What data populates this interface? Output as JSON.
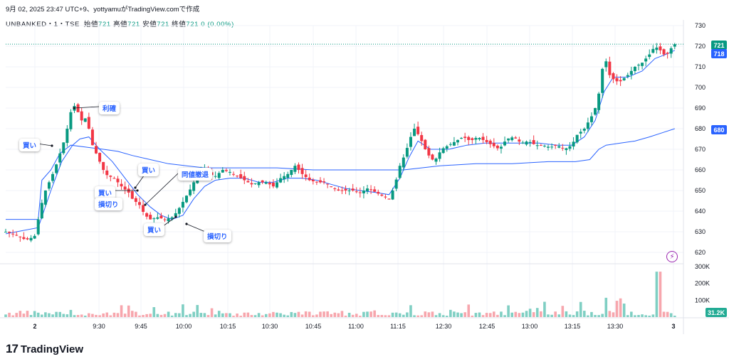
{
  "header": {
    "date_line": "9月 02, 2025 23:47 UTC+9、yottyamuがTradingView.comで作成",
    "symbol": "UNBANKED・1・TSE",
    "open_label": "始値",
    "open": "721",
    "high_label": "高値",
    "high": "721",
    "low_label": "安値",
    "low": "721",
    "close_label": "終値",
    "close": "721",
    "change": "0 (0.00%)"
  },
  "price_tags": {
    "last": "721",
    "line": "718",
    "vwap": "680",
    "volume": "31.2K"
  },
  "annotations": {
    "profit": "利確",
    "buy1": "買い",
    "buy2": "買い",
    "buy3": "買い",
    "buy4": "買い",
    "stop1": "損切り",
    "stop2": "損切り",
    "retreat": "同値撤退"
  },
  "footer": {
    "brand": "TradingView"
  },
  "colors": {
    "up": "#089981",
    "down": "#f23645",
    "vol_up": "#7fcfc3",
    "vol_down": "#f7a6ad",
    "line": "#2962ff",
    "accent": "#2962ff"
  },
  "chart_data": {
    "type": "candlestick",
    "price_axis": {
      "min": 620,
      "max": 730,
      "ticks": [
        620,
        630,
        640,
        650,
        660,
        670,
        680,
        690,
        700,
        710,
        720,
        730
      ]
    },
    "volume_axis": {
      "max": 300000,
      "ticks": [
        "100K",
        "200K",
        "300K"
      ],
      "tick_values": [
        100000,
        200000,
        300000
      ]
    },
    "time_axis": [
      "2",
      "9:30",
      "9:45",
      "10:00",
      "10:15",
      "10:30",
      "10:45",
      "11:00",
      "11:15",
      "12:30",
      "12:45",
      "13:00",
      "13:15",
      "13:30",
      "3"
    ],
    "series": [
      {
        "name": "price",
        "points": [
          [
            0,
            630
          ],
          [
            8,
            629
          ],
          [
            14,
            628
          ],
          [
            18,
            627
          ],
          [
            22,
            626
          ],
          [
            28,
            627
          ],
          [
            32,
            628
          ],
          [
            36,
            636
          ],
          [
            42,
            648
          ],
          [
            48,
            654
          ],
          [
            54,
            660
          ],
          [
            60,
            668
          ],
          [
            66,
            676
          ],
          [
            70,
            684
          ],
          [
            74,
            692
          ],
          [
            78,
            690
          ],
          [
            84,
            684
          ],
          [
            88,
            685
          ],
          [
            92,
            680
          ],
          [
            96,
            672
          ],
          [
            104,
            664
          ],
          [
            110,
            658
          ],
          [
            114,
            657
          ],
          [
            120,
            656
          ],
          [
            128,
            652
          ],
          [
            136,
            649
          ],
          [
            140,
            646
          ],
          [
            148,
            643
          ],
          [
            154,
            638
          ],
          [
            160,
            636
          ],
          [
            168,
            637
          ],
          [
            176,
            636
          ],
          [
            184,
            637
          ],
          [
            190,
            640
          ],
          [
            198,
            646
          ],
          [
            206,
            652
          ],
          [
            212,
            658
          ],
          [
            218,
            662
          ],
          [
            224,
            658
          ],
          [
            232,
            657
          ],
          [
            240,
            660
          ],
          [
            248,
            659
          ],
          [
            256,
            657
          ],
          [
            264,
            655
          ],
          [
            272,
            653
          ],
          [
            280,
            654
          ],
          [
            288,
            654
          ],
          [
            296,
            652
          ],
          [
            304,
            656
          ],
          [
            312,
            658
          ],
          [
            320,
            662
          ],
          [
            328,
            658
          ],
          [
            336,
            655
          ],
          [
            344,
            654
          ],
          [
            352,
            654
          ],
          [
            360,
            652
          ],
          [
            368,
            650
          ],
          [
            376,
            650
          ],
          [
            384,
            650
          ],
          [
            392,
            649
          ],
          [
            400,
            651
          ],
          [
            410,
            649
          ],
          [
            418,
            647
          ],
          [
            424,
            646
          ],
          [
            430,
            652
          ],
          [
            436,
            662
          ],
          [
            442,
            668
          ],
          [
            448,
            676
          ],
          [
            452,
            680
          ],
          [
            458,
            676
          ],
          [
            466,
            668
          ],
          [
            474,
            664
          ],
          [
            482,
            670
          ],
          [
            490,
            672
          ],
          [
            498,
            674
          ],
          [
            506,
            676
          ],
          [
            514,
            674
          ],
          [
            522,
            676
          ],
          [
            530,
            674
          ],
          [
            538,
            672
          ],
          [
            546,
            670
          ],
          [
            554,
            675
          ],
          [
            562,
            676
          ],
          [
            570,
            673
          ],
          [
            578,
            674
          ],
          [
            586,
            672
          ],
          [
            594,
            672
          ],
          [
            602,
            671
          ],
          [
            610,
            672
          ],
          [
            618,
            670
          ],
          [
            626,
            672
          ],
          [
            632,
            677
          ],
          [
            640,
            680
          ],
          [
            648,
            686
          ],
          [
            654,
            692
          ],
          [
            658,
            702
          ],
          [
            662,
            716
          ],
          [
            668,
            706
          ],
          [
            674,
            703
          ],
          [
            680,
            703
          ],
          [
            688,
            706
          ],
          [
            696,
            710
          ],
          [
            704,
            712
          ],
          [
            712,
            716
          ],
          [
            718,
            720
          ],
          [
            724,
            718
          ],
          [
            730,
            715
          ],
          [
            736,
            719
          ],
          [
            740,
            721
          ]
        ]
      },
      {
        "name": "ema",
        "points": [
          [
            0,
            629
          ],
          [
            36,
            632
          ],
          [
            50,
            650
          ],
          [
            62,
            664
          ],
          [
            74,
            672
          ],
          [
            82,
            675
          ],
          [
            92,
            676
          ],
          [
            104,
            670
          ],
          [
            118,
            664
          ],
          [
            132,
            656
          ],
          [
            146,
            648
          ],
          [
            160,
            642
          ],
          [
            172,
            638
          ],
          [
            184,
            636
          ],
          [
            196,
            638
          ],
          [
            208,
            646
          ],
          [
            220,
            652
          ],
          [
            232,
            655
          ],
          [
            248,
            656
          ],
          [
            264,
            656
          ],
          [
            280,
            654
          ],
          [
            296,
            654
          ],
          [
            312,
            656
          ],
          [
            328,
            656
          ],
          [
            344,
            655
          ],
          [
            360,
            653
          ],
          [
            376,
            651
          ],
          [
            392,
            650
          ],
          [
            410,
            649
          ],
          [
            424,
            648
          ],
          [
            436,
            656
          ],
          [
            446,
            666
          ],
          [
            456,
            674
          ],
          [
            470,
            670
          ],
          [
            490,
            670
          ],
          [
            510,
            672
          ],
          [
            530,
            673
          ],
          [
            550,
            673
          ],
          [
            570,
            673
          ],
          [
            590,
            673
          ],
          [
            610,
            672
          ],
          [
            626,
            672
          ],
          [
            640,
            676
          ],
          [
            652,
            684
          ],
          [
            662,
            698
          ],
          [
            672,
            705
          ],
          [
            688,
            705
          ],
          [
            704,
            708
          ],
          [
            718,
            714
          ],
          [
            730,
            716
          ],
          [
            740,
            718
          ]
        ]
      },
      {
        "name": "vwap",
        "points": [
          [
            0,
            636
          ],
          [
            36,
            636
          ],
          [
            40,
            655
          ],
          [
            50,
            660
          ],
          [
            60,
            668
          ],
          [
            72,
            672
          ],
          [
            90,
            671
          ],
          [
            108,
            670
          ],
          [
            124,
            669
          ],
          [
            140,
            667
          ],
          [
            160,
            665
          ],
          [
            180,
            663
          ],
          [
            200,
            662
          ],
          [
            220,
            661
          ],
          [
            260,
            661
          ],
          [
            300,
            661
          ],
          [
            340,
            660
          ],
          [
            380,
            660
          ],
          [
            420,
            660
          ],
          [
            440,
            660
          ],
          [
            460,
            661
          ],
          [
            480,
            662
          ],
          [
            520,
            663
          ],
          [
            560,
            663
          ],
          [
            600,
            664
          ],
          [
            630,
            664
          ],
          [
            646,
            665
          ],
          [
            656,
            670
          ],
          [
            664,
            672
          ],
          [
            680,
            673
          ],
          [
            696,
            674
          ],
          [
            712,
            676
          ],
          [
            726,
            678
          ],
          [
            740,
            680
          ]
        ]
      }
    ]
  }
}
